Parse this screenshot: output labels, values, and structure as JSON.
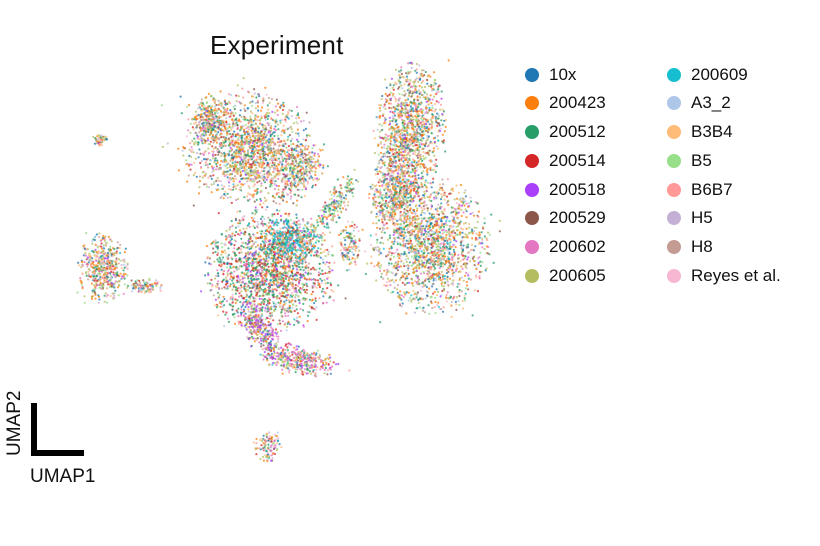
{
  "chart_data": {
    "type": "scatter",
    "title": "Experiment",
    "xlabel": "UMAP1",
    "ylabel": "UMAP2",
    "legend_placement": "right",
    "grid": false,
    "series": [
      {
        "name": "10x",
        "color": "#1f77b4"
      },
      {
        "name": "200423",
        "color": "#ff7f0e"
      },
      {
        "name": "200512",
        "color": "#279e68"
      },
      {
        "name": "200514",
        "color": "#d62728"
      },
      {
        "name": "200518",
        "color": "#aa40fc"
      },
      {
        "name": "200529",
        "color": "#8c564b"
      },
      {
        "name": "200602",
        "color": "#e377c2"
      },
      {
        "name": "200605",
        "color": "#b5bd61"
      },
      {
        "name": "200609",
        "color": "#17becf"
      },
      {
        "name": "A3_2",
        "color": "#aec7e8"
      },
      {
        "name": "B3B4",
        "color": "#ffbb78"
      },
      {
        "name": "B5",
        "color": "#98df8a"
      },
      {
        "name": "B6B7",
        "color": "#ff9896"
      },
      {
        "name": "H5",
        "color": "#c5b0d5"
      },
      {
        "name": "H8",
        "color": "#c49c94"
      },
      {
        "name": "Reyes et al.",
        "color": "#f7b6d2"
      }
    ]
  }
}
